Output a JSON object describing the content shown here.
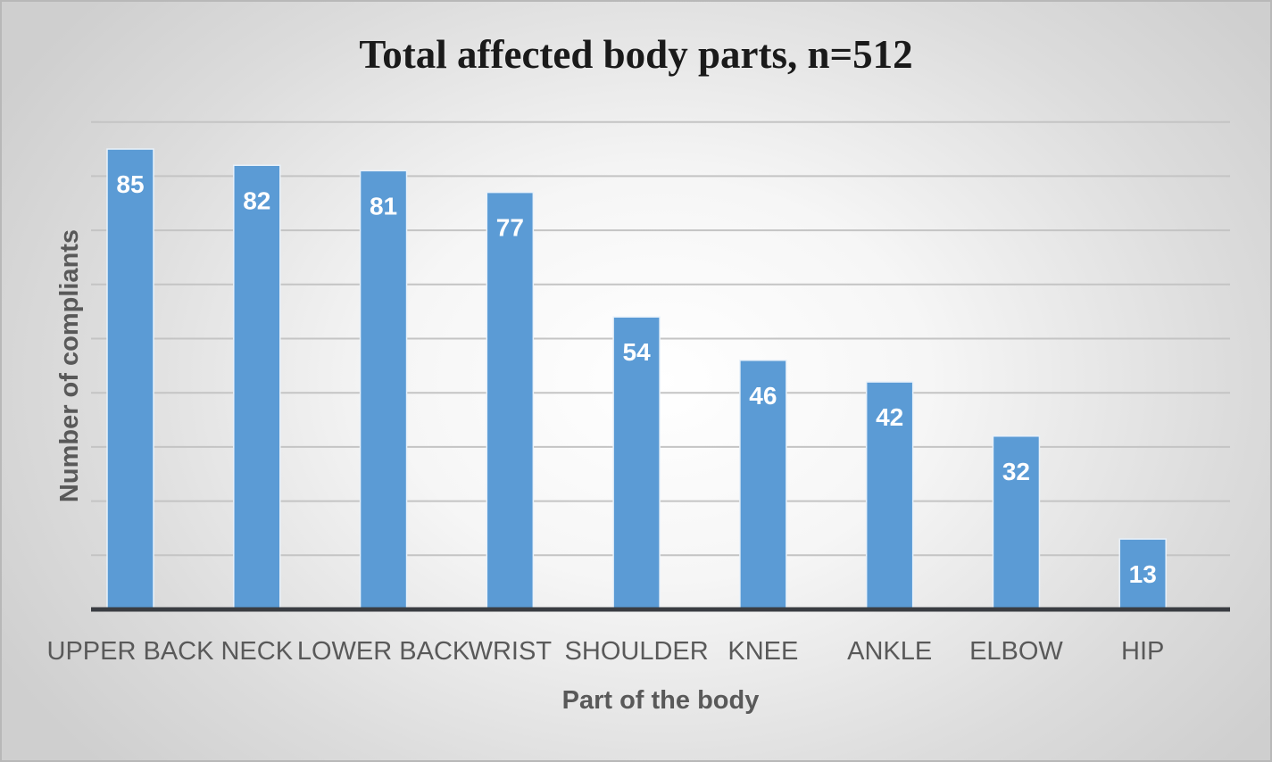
{
  "chart_data": {
    "type": "bar",
    "title": "Total affected body parts, n=512",
    "xlabel": "Part of the body",
    "ylabel": "Number of compliants",
    "categories": [
      "UPPER BACK",
      "NECK",
      "LOWER BACK",
      "WRIST",
      "SHOULDER",
      "KNEE",
      "ANKLE",
      "ELBOW",
      "HIP"
    ],
    "values": [
      85,
      82,
      81,
      77,
      54,
      46,
      42,
      32,
      13
    ],
    "ylim": [
      0,
      90
    ],
    "grid": true,
    "legend": "none",
    "data_labels": true,
    "bar_color": "#5b9bd5"
  }
}
